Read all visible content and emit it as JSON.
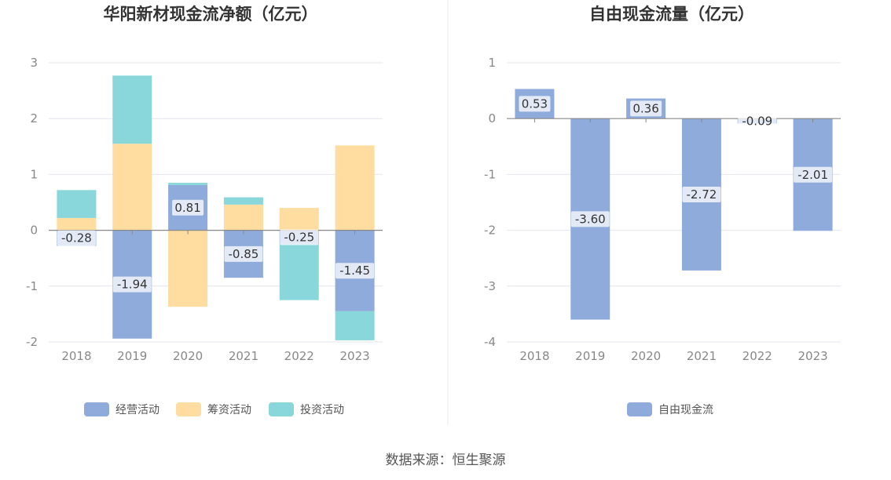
{
  "source": "数据来源：恒生聚源",
  "colors": {
    "operating": "#8eabdb",
    "financing": "#ffdc9f",
    "investing": "#89d7da",
    "free_cash_flow": "#8eabdb",
    "grid": "#e3e6ee",
    "axis": "#888888"
  },
  "chart_data": [
    {
      "type": "bar",
      "stacked": true,
      "title": "华阳新材现金流净额（亿元）",
      "categories": [
        "2018",
        "2019",
        "2020",
        "2021",
        "2022",
        "2023"
      ],
      "series": [
        {
          "name": "经营活动",
          "values": [
            -0.28,
            -1.94,
            0.81,
            -0.85,
            -0.25,
            -1.45
          ]
        },
        {
          "name": "筹资活动",
          "values": [
            0.22,
            1.55,
            -1.37,
            0.46,
            0.4,
            1.52
          ]
        },
        {
          "name": "投资活动",
          "values": [
            0.5,
            1.22,
            0.04,
            0.13,
            -1.0,
            -0.52
          ]
        }
      ],
      "data_labels_series": "经营活动",
      "ylim": [
        -2,
        3
      ],
      "yticks": [
        "3",
        "2",
        "1",
        "0",
        "-1",
        "-2"
      ],
      "legend": "bottom",
      "grid": true
    },
    {
      "type": "bar",
      "title": "自由现金流量（亿元）",
      "categories": [
        "2018",
        "2019",
        "2020",
        "2021",
        "2022",
        "2023"
      ],
      "series": [
        {
          "name": "自由现金流",
          "values": [
            0.53,
            -3.6,
            0.36,
            -2.72,
            -0.09,
            -2.01
          ]
        }
      ],
      "data_labels_series": "自由现金流",
      "ylim": [
        -4,
        1
      ],
      "yticks": [
        "1",
        "0",
        "-1",
        "-2",
        "-3",
        "-4"
      ],
      "legend": "bottom",
      "grid": true
    }
  ]
}
